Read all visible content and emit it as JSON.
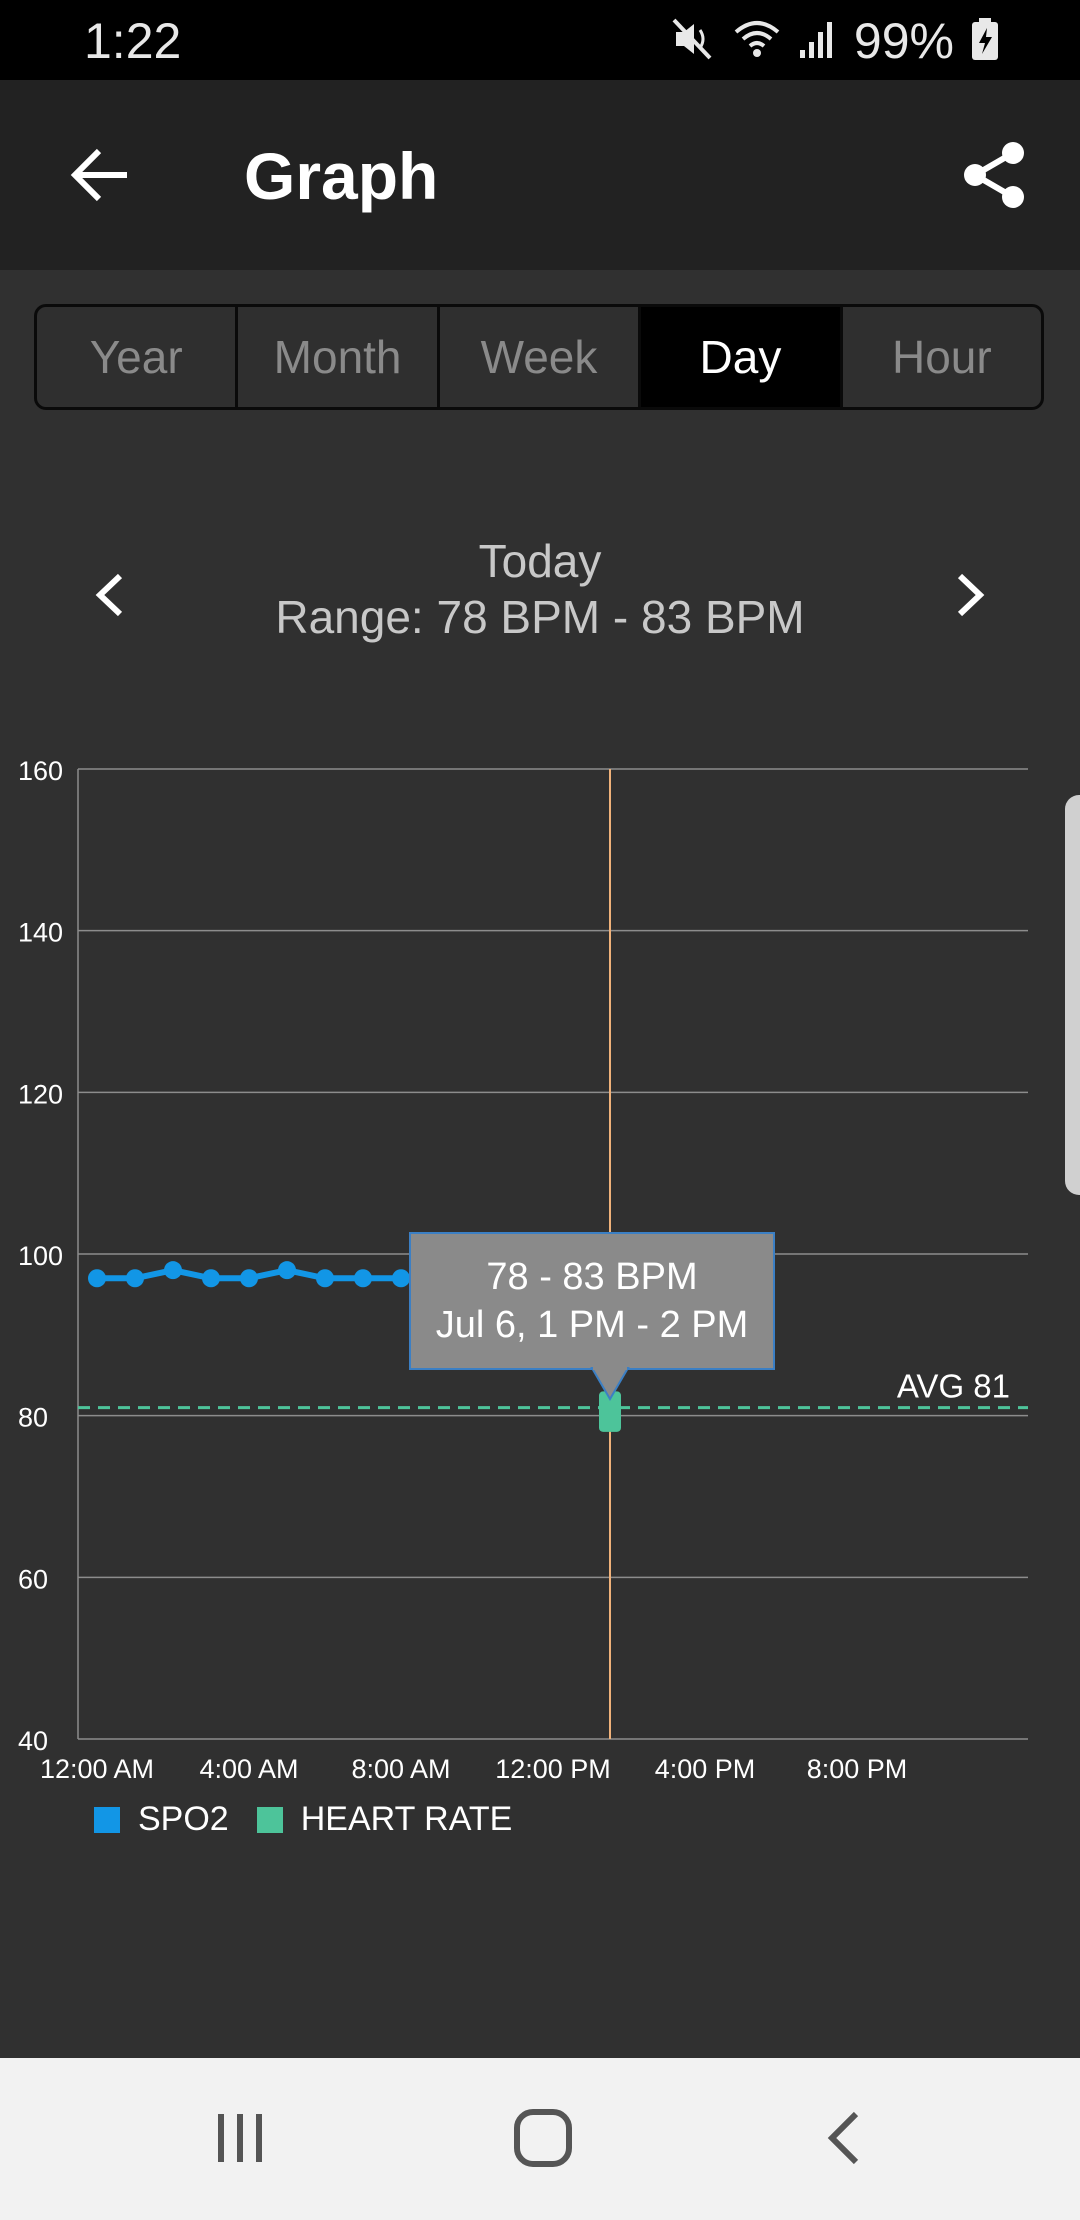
{
  "status_bar": {
    "time": "1:22",
    "battery": "99%",
    "icons": [
      "mute-icon",
      "wifi-icon",
      "signal-icon",
      "battery-charging-icon"
    ]
  },
  "app_bar": {
    "title": "Graph",
    "icons": [
      "back-arrow-icon",
      "share-icon"
    ]
  },
  "tabs": [
    {
      "label": "Year",
      "active": false
    },
    {
      "label": "Month",
      "active": false
    },
    {
      "label": "Week",
      "active": false
    },
    {
      "label": "Day",
      "active": true
    },
    {
      "label": "Hour",
      "active": false
    }
  ],
  "period": {
    "title": "Today",
    "range": "Range: 78 BPM - 83 BPM"
  },
  "tooltip": {
    "line1": "78 - 83 BPM",
    "line2": "Jul 6, 1 PM - 2 PM"
  },
  "avg_label": "AVG 81",
  "colors": {
    "spo2": "#1296e6",
    "heart_rate": "#4dc49a",
    "cursor_line": "#f0b27a",
    "tooltip_bg": "#8a8a8a",
    "background": "#303030"
  },
  "chart_data": {
    "type": "line",
    "ylim": [
      40,
      160
    ],
    "y_ticks": [
      "160",
      "140",
      "120",
      "100",
      "80",
      "60",
      "40"
    ],
    "x_tick_labels": [
      "12:00 AM",
      "4:00 AM",
      "8:00 AM",
      "12:00 PM",
      "4:00 PM",
      "8:00 PM"
    ],
    "x_unit": "hour of day",
    "xlim": [
      0,
      24
    ],
    "series": [
      {
        "name": "SPO2",
        "x": [
          0,
          1,
          2,
          3,
          4,
          5,
          6,
          7,
          8
        ],
        "values": [
          97,
          97,
          98,
          97,
          97,
          98,
          97,
          97,
          97
        ]
      },
      {
        "name": "HEART RATE",
        "type": "range-bar",
        "x": [
          13.5
        ],
        "low": [
          78
        ],
        "high": [
          83
        ]
      }
    ],
    "average": 81,
    "cursor_x": 13.5,
    "grid": true,
    "legend": "bottom-left"
  }
}
